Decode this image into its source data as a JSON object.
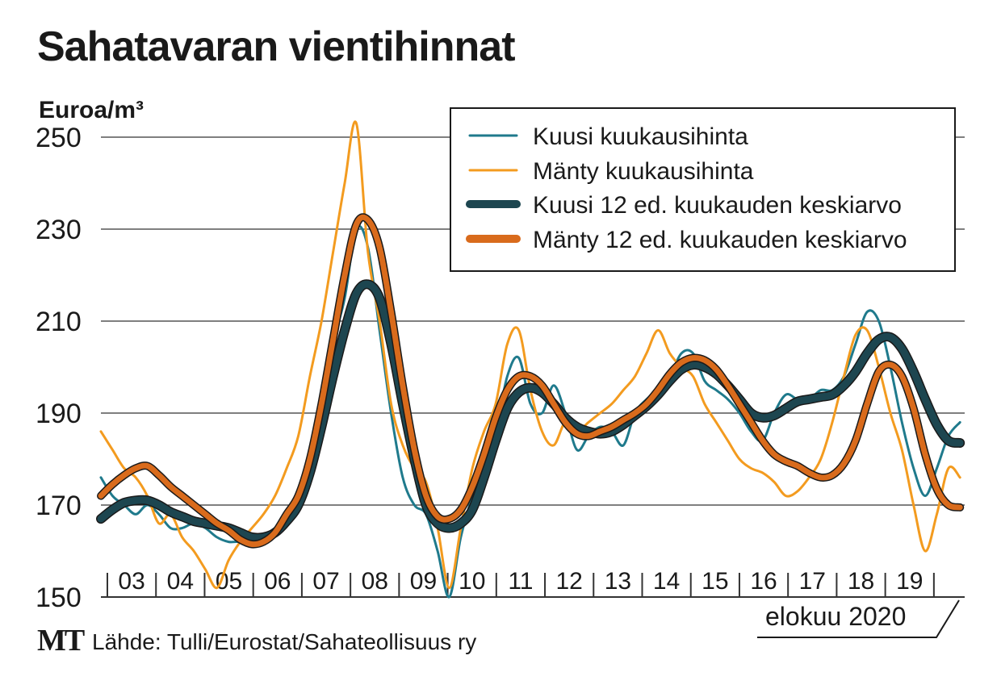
{
  "title": "Sahatavaran vientihinnat",
  "unit": "Euroa/m³",
  "footer": {
    "logo": "MT",
    "source": "Lähde: Tulli/Eurostat/Sahateollisuus ry"
  },
  "date_label": "elokuu 2020",
  "colors": {
    "kuusi": "#1f7a8c",
    "manty": "#f39b1f",
    "kuusi_avg": "#1d4650",
    "manty_avg": "#d96b1c",
    "grid": "#333333"
  },
  "chart_data": {
    "type": "line",
    "title": "Sahatavaran vientihinnat",
    "ylabel": "Euroa/m³",
    "xlabel": "",
    "ylim": [
      150,
      250
    ],
    "yticks": [
      150,
      170,
      190,
      210,
      230,
      250
    ],
    "xlim": [
      2002.0,
      2020.6
    ],
    "x_tick_labels": [
      "03",
      "04",
      "05",
      "06",
      "07",
      "08",
      "09",
      "10",
      "11",
      "12",
      "13",
      "14",
      "15",
      "16",
      "17",
      "18",
      "19"
    ],
    "legend_position": "top-right",
    "grid": true,
    "series": [
      {
        "name": "Kuusi kuukausihinta",
        "style": "thin",
        "x": [
          2002.0,
          2002.25,
          2002.5,
          2002.75,
          2003.0,
          2003.25,
          2003.5,
          2003.75,
          2004.0,
          2004.25,
          2004.5,
          2004.75,
          2005.0,
          2005.25,
          2005.5,
          2005.75,
          2006.0,
          2006.25,
          2006.5,
          2006.75,
          2007.0,
          2007.25,
          2007.5,
          2007.75,
          2008.0,
          2008.25,
          2008.5,
          2008.75,
          2009.0,
          2009.25,
          2009.5,
          2009.75,
          2010.0,
          2010.25,
          2010.5,
          2010.75,
          2011.0,
          2011.25,
          2011.5,
          2011.75,
          2012.0,
          2012.25,
          2012.5,
          2012.75,
          2013.0,
          2013.25,
          2013.5,
          2013.75,
          2014.0,
          2014.25,
          2014.5,
          2014.75,
          2015.0,
          2015.25,
          2015.5,
          2015.75,
          2016.0,
          2016.25,
          2016.5,
          2016.75,
          2017.0,
          2017.25,
          2017.5,
          2017.75,
          2018.0,
          2018.25,
          2018.5,
          2018.75,
          2019.0,
          2019.25,
          2019.5,
          2019.75,
          2020.0,
          2020.25,
          2020.5
        ],
        "values": [
          176,
          172,
          170,
          168,
          170,
          168,
          165,
          165,
          166,
          165,
          163,
          162,
          162,
          161,
          163,
          165,
          166,
          170,
          178,
          190,
          205,
          215,
          230,
          226,
          208,
          190,
          176,
          170,
          168,
          160,
          150,
          163,
          172,
          180,
          186,
          198,
          202,
          192,
          190,
          196,
          190,
          182,
          185,
          187,
          186,
          183,
          190,
          193,
          195,
          198,
          203,
          203,
          197,
          195,
          193,
          190,
          186,
          184,
          190,
          194,
          193,
          193,
          195,
          195,
          198,
          205,
          212,
          210,
          200,
          188,
          178,
          172,
          178,
          185,
          188
        ]
      },
      {
        "name": "Mänty kuukausihinta",
        "style": "thin",
        "x": [
          2002.0,
          2002.25,
          2002.5,
          2002.75,
          2003.0,
          2003.25,
          2003.5,
          2003.75,
          2004.0,
          2004.25,
          2004.5,
          2004.75,
          2005.0,
          2005.25,
          2005.5,
          2005.75,
          2006.0,
          2006.25,
          2006.5,
          2006.75,
          2007.0,
          2007.25,
          2007.5,
          2007.75,
          2008.0,
          2008.25,
          2008.5,
          2008.75,
          2009.0,
          2009.25,
          2009.5,
          2009.75,
          2010.0,
          2010.25,
          2010.5,
          2010.75,
          2011.0,
          2011.25,
          2011.5,
          2011.75,
          2012.0,
          2012.25,
          2012.5,
          2012.75,
          2013.0,
          2013.25,
          2013.5,
          2013.75,
          2014.0,
          2014.25,
          2014.5,
          2014.75,
          2015.0,
          2015.25,
          2015.5,
          2015.75,
          2016.0,
          2016.25,
          2016.5,
          2016.75,
          2017.0,
          2017.25,
          2017.5,
          2017.75,
          2018.0,
          2018.25,
          2018.5,
          2018.75,
          2019.0,
          2019.25,
          2019.5,
          2019.75,
          2020.0,
          2020.25,
          2020.5
        ],
        "values": [
          186,
          182,
          178,
          176,
          172,
          166,
          168,
          163,
          160,
          156,
          152,
          158,
          162,
          165,
          168,
          172,
          178,
          185,
          198,
          210,
          225,
          240,
          253,
          225,
          210,
          192,
          183,
          178,
          175,
          165,
          152,
          165,
          178,
          186,
          192,
          205,
          208,
          195,
          186,
          183,
          188,
          186,
          188,
          190,
          192,
          195,
          198,
          203,
          208,
          203,
          200,
          198,
          192,
          188,
          184,
          180,
          178,
          177,
          175,
          172,
          173,
          176,
          180,
          188,
          198,
          207,
          208,
          200,
          190,
          182,
          170,
          160,
          168,
          178,
          176
        ]
      },
      {
        "name": "Kuusi 12 ed. kuukauden keskiarvo",
        "style": "thick",
        "x": [
          2002.0,
          2002.25,
          2002.5,
          2002.75,
          2003.0,
          2003.25,
          2003.5,
          2003.75,
          2004.0,
          2004.25,
          2004.5,
          2004.75,
          2005.0,
          2005.25,
          2005.5,
          2005.75,
          2006.0,
          2006.25,
          2006.5,
          2006.75,
          2007.0,
          2007.25,
          2007.5,
          2007.75,
          2008.0,
          2008.25,
          2008.5,
          2008.75,
          2009.0,
          2009.25,
          2009.5,
          2009.75,
          2010.0,
          2010.25,
          2010.5,
          2010.75,
          2011.0,
          2011.25,
          2011.5,
          2011.75,
          2012.0,
          2012.25,
          2012.5,
          2012.75,
          2013.0,
          2013.25,
          2013.5,
          2013.75,
          2014.0,
          2014.25,
          2014.5,
          2014.75,
          2015.0,
          2015.25,
          2015.5,
          2015.75,
          2016.0,
          2016.25,
          2016.5,
          2016.75,
          2017.0,
          2017.25,
          2017.5,
          2017.75,
          2018.0,
          2018.25,
          2018.5,
          2018.75,
          2019.0,
          2019.25,
          2019.5,
          2019.75,
          2020.0,
          2020.25,
          2020.5
        ],
        "values": [
          167,
          169,
          170.5,
          171,
          171,
          170,
          168.5,
          167.5,
          166.5,
          166,
          165.5,
          165,
          164,
          163,
          163,
          164,
          166.5,
          170,
          177,
          187,
          198,
          208,
          216,
          218,
          215,
          205,
          192,
          180,
          170,
          166,
          165,
          166,
          169,
          176,
          184,
          191,
          194.5,
          195.5,
          194.5,
          192,
          189,
          187,
          186,
          185.5,
          186,
          187.5,
          189.5,
          191.5,
          194,
          197,
          199.5,
          200.5,
          200,
          198.5,
          196,
          193,
          190,
          189,
          189.5,
          191,
          192.5,
          193,
          193.5,
          194,
          196,
          199,
          203,
          206,
          206.5,
          204,
          199,
          193,
          187.5,
          184,
          183.5
        ]
      },
      {
        "name": "Mänty 12 ed. kuukauden keskiarvo",
        "style": "thick",
        "x": [
          2002.0,
          2002.25,
          2002.5,
          2002.75,
          2003.0,
          2003.25,
          2003.5,
          2003.75,
          2004.0,
          2004.25,
          2004.5,
          2004.75,
          2005.0,
          2005.25,
          2005.5,
          2005.75,
          2006.0,
          2006.25,
          2006.5,
          2006.75,
          2007.0,
          2007.25,
          2007.5,
          2007.75,
          2008.0,
          2008.25,
          2008.5,
          2008.75,
          2009.0,
          2009.25,
          2009.5,
          2009.75,
          2010.0,
          2010.25,
          2010.5,
          2010.75,
          2011.0,
          2011.25,
          2011.5,
          2011.75,
          2012.0,
          2012.25,
          2012.5,
          2012.75,
          2013.0,
          2013.25,
          2013.5,
          2013.75,
          2014.0,
          2014.25,
          2014.5,
          2014.75,
          2015.0,
          2015.25,
          2015.5,
          2015.75,
          2016.0,
          2016.25,
          2016.5,
          2016.75,
          2017.0,
          2017.25,
          2017.5,
          2017.75,
          2018.0,
          2018.25,
          2018.5,
          2018.75,
          2019.0,
          2019.25,
          2019.5,
          2019.75,
          2020.0,
          2020.25,
          2020.5
        ],
        "values": [
          172,
          174.5,
          176.5,
          178,
          178.5,
          176.5,
          174,
          172,
          170,
          168,
          166,
          164.5,
          162.5,
          161.5,
          162,
          164,
          168,
          172,
          180,
          192,
          206,
          220,
          231,
          232,
          226,
          212,
          196,
          182,
          172,
          167.5,
          167,
          169,
          174,
          181,
          189,
          195,
          198,
          198,
          196,
          192,
          188,
          185.5,
          185,
          186,
          187,
          188.5,
          190,
          192,
          195,
          198.5,
          201,
          202,
          201.5,
          199.5,
          196,
          192,
          188,
          184,
          181,
          179.5,
          178.5,
          177,
          176,
          176.5,
          179,
          184,
          192,
          199,
          200.5,
          198,
          191,
          181,
          173.5,
          170,
          169.5
        ]
      }
    ]
  }
}
